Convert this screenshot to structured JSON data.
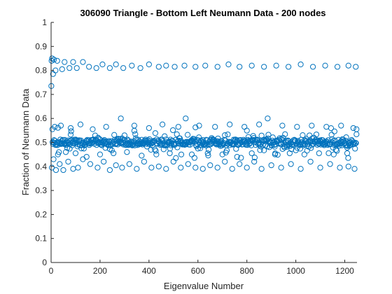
{
  "chart_data": {
    "type": "scatter",
    "title": "306090 Triangle - Bottom Left Neumann Data - 200 nodes",
    "xlabel": "Eigenvalue Number",
    "ylabel": "Fraction of Neumann Data",
    "xlim": [
      0,
      1250
    ],
    "ylim": [
      0,
      1
    ],
    "xticks": [
      0,
      200,
      400,
      600,
      800,
      1000,
      1200
    ],
    "yticks": [
      0,
      0.1,
      0.2,
      0.3,
      0.4,
      0.5,
      0.6,
      0.7,
      0.8,
      0.9,
      1
    ],
    "marker": "open-circle",
    "marker_color": "#0072BD",
    "grid": false,
    "series": [
      {
        "upper_band": [
          [
            1,
            0.735
          ],
          [
            2,
            0.84
          ],
          [
            4,
            0.85
          ],
          [
            8,
            0.785
          ],
          [
            12,
            0.845
          ],
          [
            18,
            0.8
          ],
          [
            25,
            0.84
          ],
          [
            45,
            0.805
          ],
          [
            55,
            0.835
          ],
          [
            75,
            0.81
          ],
          [
            90,
            0.835
          ],
          [
            105,
            0.81
          ],
          [
            130,
            0.835
          ],
          [
            155,
            0.815
          ],
          [
            185,
            0.81
          ],
          [
            210,
            0.825
          ],
          [
            240,
            0.81
          ],
          [
            265,
            0.825
          ],
          [
            295,
            0.81
          ],
          [
            330,
            0.82
          ],
          [
            365,
            0.81
          ],
          [
            400,
            0.825
          ],
          [
            440,
            0.815
          ],
          [
            470,
            0.82
          ],
          [
            505,
            0.815
          ],
          [
            545,
            0.82
          ],
          [
            590,
            0.815
          ],
          [
            630,
            0.82
          ],
          [
            680,
            0.815
          ],
          [
            725,
            0.825
          ],
          [
            770,
            0.815
          ],
          [
            820,
            0.82
          ],
          [
            870,
            0.815
          ],
          [
            920,
            0.82
          ],
          [
            970,
            0.815
          ],
          [
            1020,
            0.825
          ],
          [
            1070,
            0.815
          ],
          [
            1120,
            0.82
          ],
          [
            1170,
            0.815
          ],
          [
            1215,
            0.82
          ],
          [
            1245,
            0.815
          ]
        ],
        "lower_band": [
          [
            3,
            0.395
          ],
          [
            10,
            0.43
          ],
          [
            20,
            0.385
          ],
          [
            35,
            0.41
          ],
          [
            50,
            0.385
          ],
          [
            70,
            0.42
          ],
          [
            90,
            0.39
          ],
          [
            110,
            0.395
          ],
          [
            130,
            0.43
          ],
          [
            160,
            0.41
          ],
          [
            190,
            0.395
          ],
          [
            215,
            0.42
          ],
          [
            240,
            0.385
          ],
          [
            265,
            0.405
          ],
          [
            290,
            0.395
          ],
          [
            320,
            0.41
          ],
          [
            350,
            0.39
          ],
          [
            380,
            0.42
          ],
          [
            410,
            0.395
          ],
          [
            440,
            0.4
          ],
          [
            470,
            0.39
          ],
          [
            500,
            0.42
          ],
          [
            530,
            0.395
          ],
          [
            560,
            0.41
          ],
          [
            590,
            0.395
          ],
          [
            620,
            0.39
          ],
          [
            650,
            0.405
          ],
          [
            680,
            0.395
          ],
          [
            710,
            0.42
          ],
          [
            740,
            0.39
          ],
          [
            770,
            0.41
          ],
          [
            800,
            0.395
          ],
          [
            830,
            0.42
          ],
          [
            860,
            0.39
          ],
          [
            900,
            0.405
          ],
          [
            940,
            0.395
          ],
          [
            980,
            0.41
          ],
          [
            1020,
            0.39
          ],
          [
            1060,
            0.42
          ],
          [
            1100,
            0.395
          ],
          [
            1140,
            0.41
          ],
          [
            1180,
            0.395
          ],
          [
            1215,
            0.4
          ],
          [
            1240,
            0.39
          ]
        ],
        "outer_spread": [
          [
            5,
            0.555
          ],
          [
            15,
            0.565
          ],
          [
            28,
            0.45
          ],
          [
            40,
            0.57
          ],
          [
            60,
            0.46
          ],
          [
            80,
            0.56
          ],
          [
            100,
            0.455
          ],
          [
            120,
            0.575
          ],
          [
            145,
            0.44
          ],
          [
            170,
            0.555
          ],
          [
            200,
            0.45
          ],
          [
            225,
            0.565
          ],
          [
            255,
            0.455
          ],
          [
            285,
            0.6
          ],
          [
            310,
            0.46
          ],
          [
            340,
            0.57
          ],
          [
            370,
            0.445
          ],
          [
            400,
            0.56
          ],
          [
            430,
            0.45
          ],
          [
            455,
            0.575
          ],
          [
            485,
            0.455
          ],
          [
            520,
            0.565
          ],
          [
            550,
            0.6
          ],
          [
            575,
            0.45
          ],
          [
            605,
            0.57
          ],
          [
            640,
            0.455
          ],
          [
            670,
            0.565
          ],
          [
            700,
            0.45
          ],
          [
            730,
            0.575
          ],
          [
            760,
            0.44
          ],
          [
            790,
            0.565
          ],
          [
            820,
            0.455
          ],
          [
            850,
            0.575
          ],
          [
            885,
            0.6
          ],
          [
            915,
            0.45
          ],
          [
            945,
            0.57
          ],
          [
            975,
            0.455
          ],
          [
            1005,
            0.565
          ],
          [
            1035,
            0.45
          ],
          [
            1065,
            0.57
          ],
          [
            1095,
            0.455
          ],
          [
            1125,
            0.565
          ],
          [
            1155,
            0.45
          ],
          [
            1185,
            0.57
          ],
          [
            1210,
            0.455
          ],
          [
            1235,
            0.56
          ],
          [
            1248,
            0.555
          ]
        ]
      }
    ]
  }
}
